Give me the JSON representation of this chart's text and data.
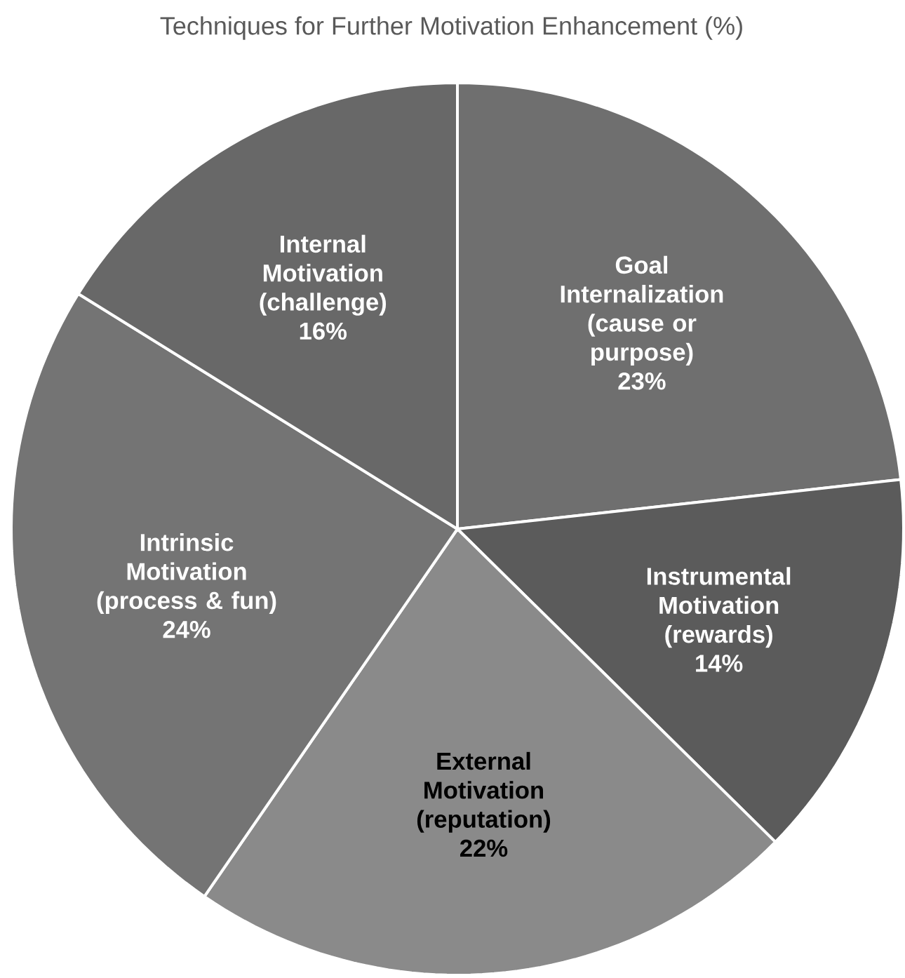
{
  "chart_data": {
    "type": "pie",
    "title": "Techniques for Further Motivation Enhancement (%)",
    "categories": [
      "Goal Internalization (cause or purpose)",
      "Instrumental Motivation (rewards)",
      "External Motivation (reputation)",
      "Intrinsic Motivation (process & fun)",
      "Internal Motivation (challenge)"
    ],
    "values": [
      23,
      14,
      22,
      24,
      16
    ],
    "value_labels": [
      "23%",
      "14%",
      "22%",
      "24%",
      "16%"
    ],
    "colors": [
      "#6f6f6f",
      "#5b5b5b",
      "#8a8a8a",
      "#747474",
      "#686868"
    ]
  }
}
